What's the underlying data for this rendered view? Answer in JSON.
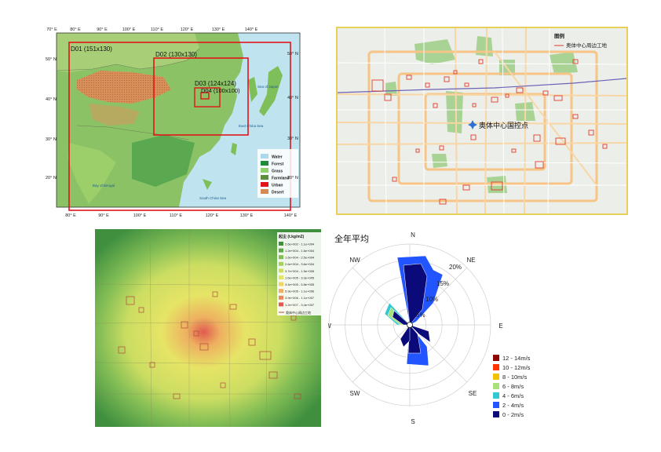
{
  "domain_map": {
    "lon_ticks": [
      "70° E",
      "80° E",
      "90° E",
      "100° E",
      "110° E",
      "120° E",
      "130° E",
      "140° E"
    ],
    "lat_ticks": [
      "50° N",
      "40° N",
      "30° N",
      "20° N"
    ],
    "domains": [
      {
        "label": "D01 (151x130)"
      },
      {
        "label": "D02 (130x130)"
      },
      {
        "label": "D03 (124x124)"
      },
      {
        "label": "D04 (100x100)"
      }
    ],
    "legend": [
      "Water",
      "Forest",
      "Grass",
      "Farmland",
      "Urban",
      "Desert"
    ],
    "legend_colors": [
      "#a9d8ef",
      "#1f8a3a",
      "#8fd06a",
      "#5d8f3a",
      "#e0141a",
      "#d38a55"
    ],
    "sea_labels": [
      "Bay of Bengal",
      "South China Sea",
      "East China Sea",
      "Sea of Japan"
    ]
  },
  "city_map": {
    "legend_title": "图例",
    "legend_item": "奥体中心周边工地",
    "marker_label": "奥体中心国控点"
  },
  "concentration_map": {
    "legend_title": "起尘 (t.kg/m2)",
    "legend_items": [
      "2.6e+002 - 1.1e+004",
      "1.2e+004 - 1.6e+004",
      "1.6e+004 - 2.5e+004",
      "2.6e+004 - 3.6e+004",
      "3.7e+004 - 1.5e+005",
      "1.6e+005 - 3.3e+005",
      "3.4e+005 - 5.8e+005",
      "5.9e+005 - 1.1e+006",
      "3.9e+006 - 1.1e+007",
      "1.2e+007 - 3.4e+007"
    ],
    "legend_colors": [
      "#3f8f3f",
      "#5ea84a",
      "#82bd55",
      "#a8cf5e",
      "#cbdd62",
      "#e6e466",
      "#efd463",
      "#eeb060",
      "#e8885a",
      "#e05a4f"
    ],
    "legend_last": "奥体中心周边工地"
  },
  "wind_rose": {
    "title": "全年平均",
    "directions": [
      "N",
      "NE",
      "E",
      "SE",
      "S",
      "SW",
      "W",
      "NW"
    ],
    "ring_labels": [
      "5%",
      "10%",
      "15%",
      "20%"
    ],
    "speed_bins": [
      "12 - 14m/s",
      "10 - 12m/s",
      "8 - 10m/s",
      "6 - 8m/s",
      "4 - 6m/s",
      "2 - 4m/s",
      "0 - 2m/s"
    ],
    "speed_colors": [
      "#8b0000",
      "#ff3300",
      "#f2c200",
      "#a8e07a",
      "#33c8d6",
      "#2255ff",
      "#0a0a7a"
    ]
  }
}
